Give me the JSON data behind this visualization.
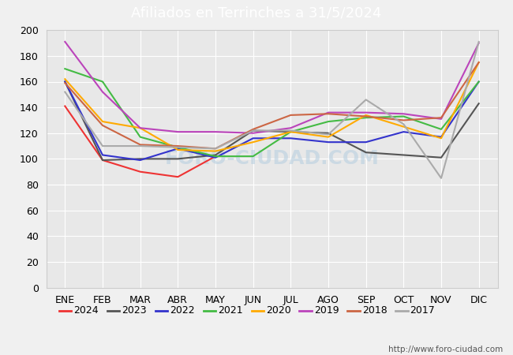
{
  "title": "Afiliados en Terrinches a 31/5/2024",
  "title_bgcolor": "#4a90d9",
  "title_color": "white",
  "ylim": [
    0,
    200
  ],
  "yticks": [
    0,
    20,
    40,
    60,
    80,
    100,
    120,
    140,
    160,
    180,
    200
  ],
  "months": [
    "ENE",
    "FEB",
    "MAR",
    "ABR",
    "MAY",
    "JUN",
    "JUL",
    "AGO",
    "SEP",
    "OCT",
    "NOV",
    "DIC"
  ],
  "fig_bgcolor": "#f0f0f0",
  "plot_bgcolor": "#e8e8e8",
  "grid_color": "#ffffff",
  "border_color": "#cccccc",
  "watermark": "FORO-CIUDAD.COM",
  "url": "http://www.foro-ciudad.com",
  "series": {
    "2024": {
      "color": "#ee3333",
      "data": [
        141,
        99,
        90,
        86,
        102,
        null,
        null,
        null,
        null,
        null,
        null,
        null
      ]
    },
    "2023": {
      "color": "#555555",
      "data": [
        160,
        99,
        100,
        100,
        103,
        122,
        121,
        120,
        105,
        103,
        101,
        143
      ]
    },
    "2022": {
      "color": "#3333cc",
      "data": [
        160,
        103,
        99,
        108,
        101,
        116,
        116,
        113,
        113,
        121,
        117,
        160
      ]
    },
    "2021": {
      "color": "#44bb44",
      "data": [
        170,
        160,
        117,
        109,
        102,
        102,
        121,
        129,
        132,
        133,
        123,
        160
      ]
    },
    "2020": {
      "color": "#ffaa00",
      "data": [
        162,
        129,
        124,
        107,
        106,
        113,
        121,
        117,
        134,
        125,
        116,
        175
      ]
    },
    "2019": {
      "color": "#bb44bb",
      "data": [
        191,
        152,
        124,
        121,
        121,
        120,
        124,
        136,
        136,
        135,
        131,
        190
      ]
    },
    "2018": {
      "color": "#cc6644",
      "data": [
        159,
        126,
        111,
        110,
        108,
        123,
        134,
        135,
        133,
        130,
        132,
        175
      ]
    },
    "2017": {
      "color": "#aaaaaa",
      "data": [
        152,
        110,
        110,
        109,
        108,
        122,
        122,
        119,
        146,
        127,
        85,
        191
      ]
    }
  },
  "legend_order": [
    "2024",
    "2023",
    "2022",
    "2021",
    "2020",
    "2019",
    "2018",
    "2017"
  ]
}
